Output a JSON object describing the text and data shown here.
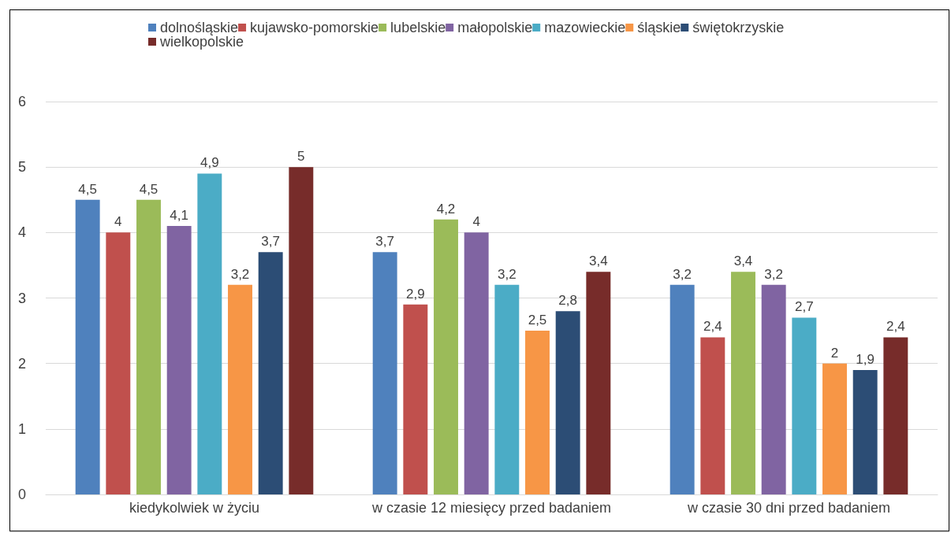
{
  "chart_data": {
    "type": "bar",
    "categories": [
      "kiedykolwiek w życiu",
      "w czasie 12 miesięcy przed badaniem",
      "w czasie 30 dni przed badaniem"
    ],
    "series": [
      {
        "name": "dolnośląskie",
        "color": "#4f81bd",
        "values": [
          4.5,
          3.7,
          3.2
        ],
        "value_labels": [
          "4,5",
          "3,7",
          "3,2"
        ]
      },
      {
        "name": "kujawsko-pomorskie",
        "color": "#c0504d",
        "values": [
          4,
          2.9,
          2.4
        ],
        "value_labels": [
          "4",
          "2,9",
          "2,4"
        ]
      },
      {
        "name": "lubelskie",
        "color": "#9bbb59",
        "values": [
          4.5,
          4.2,
          3.4
        ],
        "value_labels": [
          "4,5",
          "4,2",
          "3,4"
        ]
      },
      {
        "name": "małopolskie",
        "color": "#8064a2",
        "values": [
          4.1,
          4,
          3.2
        ],
        "value_labels": [
          "4,1",
          "4",
          "3,2"
        ]
      },
      {
        "name": "mazowieckie",
        "color": "#4bacc6",
        "values": [
          4.9,
          3.2,
          2.7
        ],
        "value_labels": [
          "4,9",
          "3,2",
          "2,7"
        ]
      },
      {
        "name": "śląskie",
        "color": "#f79646",
        "values": [
          3.2,
          2.5,
          2
        ],
        "value_labels": [
          "3,2",
          "2,5",
          "2"
        ]
      },
      {
        "name": "świętokrzyskie",
        "color": "#2c4d75",
        "values": [
          3.7,
          2.8,
          1.9
        ],
        "value_labels": [
          "3,7",
          "2,8",
          "1,9"
        ]
      },
      {
        "name": "wielkopolskie",
        "color": "#772c2a",
        "values": [
          5,
          3.4,
          2.4
        ],
        "value_labels": [
          "5",
          "3,4",
          "2,4"
        ]
      }
    ],
    "ylim": [
      0,
      6
    ],
    "yticks": [
      0,
      1,
      2,
      3,
      4,
      5,
      6
    ],
    "grid": "y",
    "legend": "top"
  }
}
